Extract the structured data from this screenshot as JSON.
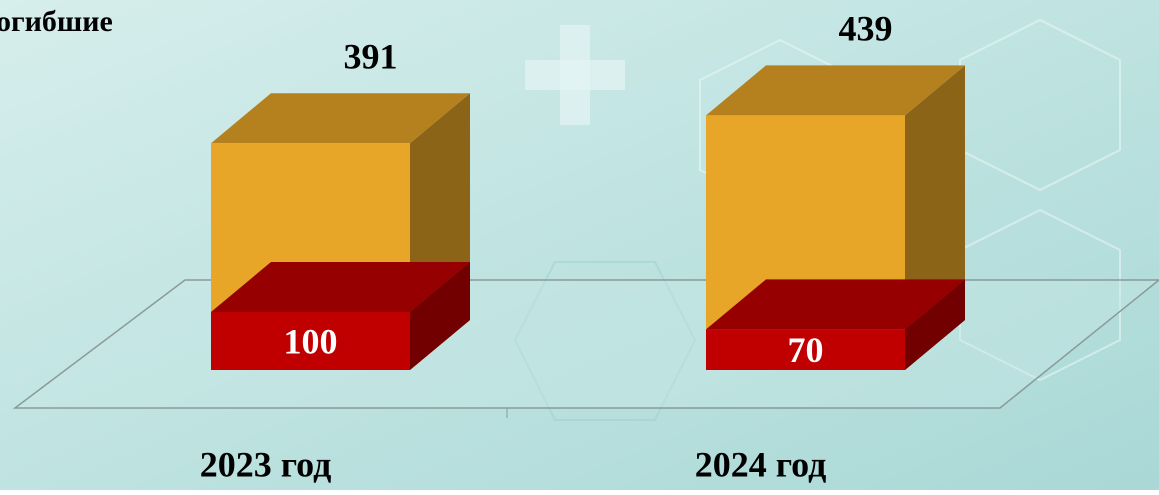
{
  "chart_data": {
    "type": "bar3d-overlap",
    "title": "огибшие",
    "categories": [
      "2023 год",
      "2024 год"
    ],
    "series": [
      {
        "color": "#e8a628",
        "values": [
          391,
          439
        ]
      },
      {
        "color": "#c00000",
        "values": [
          100,
          70
        ]
      }
    ],
    "ylim": [
      0,
      500
    ]
  }
}
